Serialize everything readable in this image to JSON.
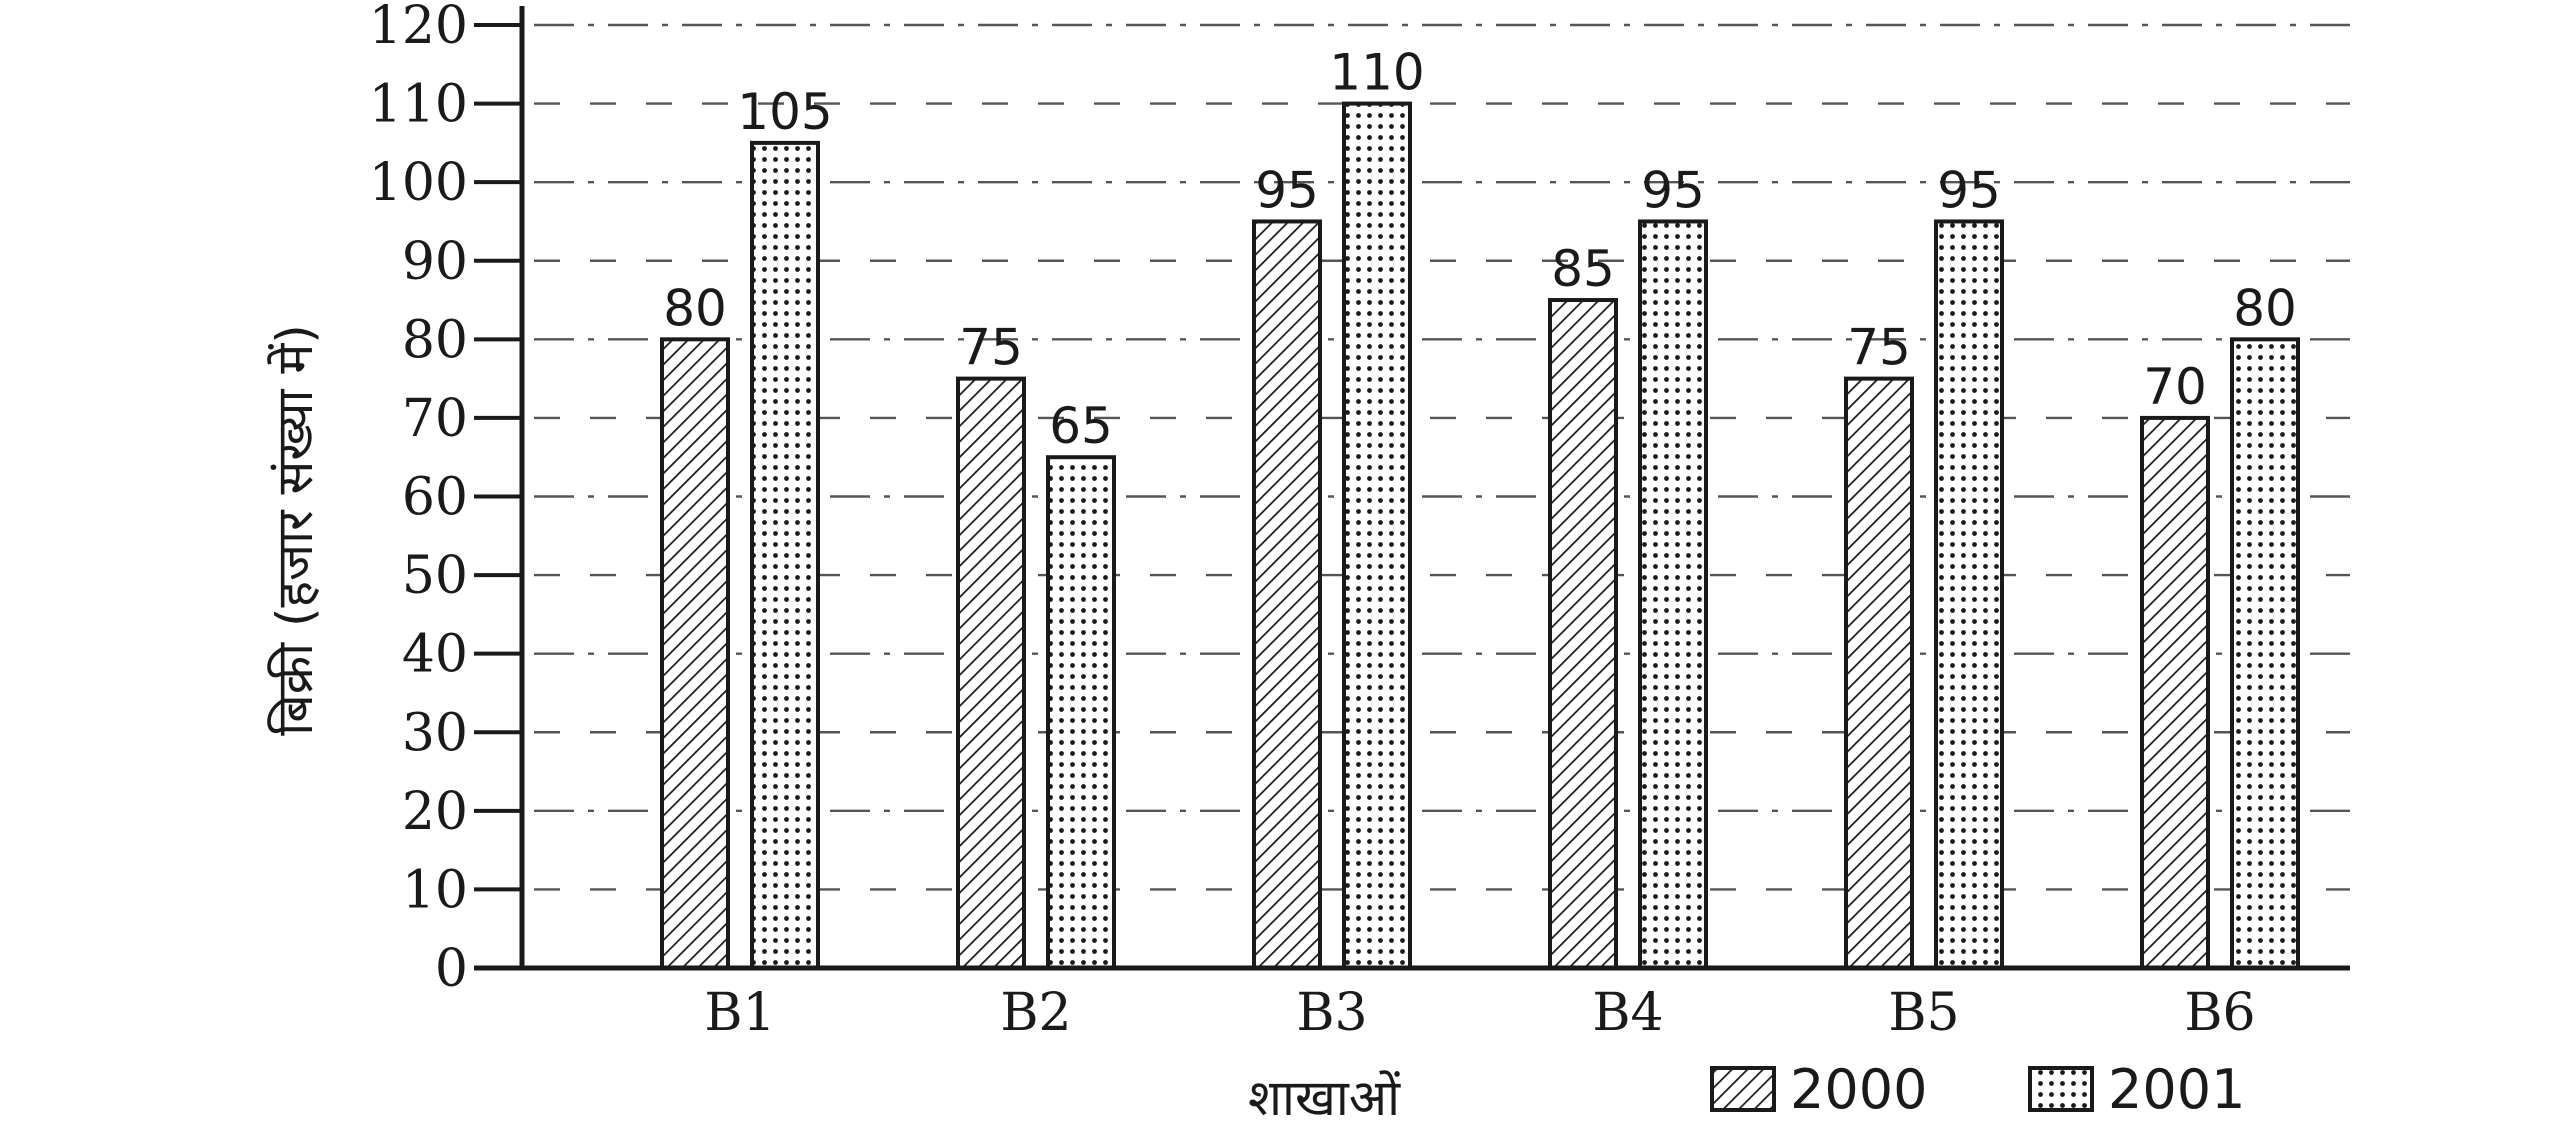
{
  "chart_data": {
    "type": "bar",
    "title": "",
    "xlabel": "शाखाओं",
    "ylabel": "बिक्री (हजार संख्या में)",
    "categories": [
      "B1",
      "B2",
      "B3",
      "B4",
      "B5",
      "B6"
    ],
    "series": [
      {
        "name": "2000",
        "values": [
          80,
          75,
          95,
          85,
          75,
          70
        ],
        "pattern": "diagonal-hatch"
      },
      {
        "name": "2001",
        "values": [
          105,
          65,
          110,
          95,
          95,
          80
        ],
        "pattern": "dots"
      }
    ],
    "ylim": [
      0,
      120
    ],
    "yticks": [
      0,
      10,
      20,
      30,
      40,
      50,
      60,
      70,
      80,
      90,
      100,
      110,
      120
    ],
    "grid": "dashed horizontal",
    "legend_position": "bottom-right",
    "show_value_labels": true,
    "colors": {
      "ink": "#1a1a1a",
      "background": "#ffffff",
      "grid": "#555555"
    }
  }
}
